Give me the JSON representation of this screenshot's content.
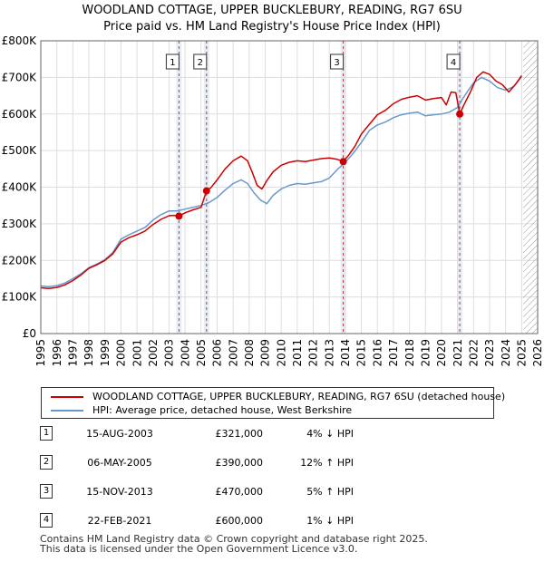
{
  "colors": {
    "price_line": "#cc0000",
    "hpi_line": "#6699cc",
    "grid": "#dddddd",
    "band": "#dde6f2",
    "vline": "#cc0000"
  },
  "chart_data": {
    "type": "line",
    "title": "WOODLAND COTTAGE, UPPER BUCKLEBURY, READING, RG7 6SU",
    "subtitle": "Price paid vs. HM Land Registry's House Price Index (HPI)",
    "xlim": [
      1995,
      2026
    ],
    "ylim": [
      0,
      800000
    ],
    "x_ticks": [
      "1995",
      "1996",
      "1997",
      "1998",
      "1999",
      "2000",
      "2001",
      "2002",
      "2003",
      "2004",
      "2005",
      "2006",
      "2007",
      "2008",
      "2009",
      "2010",
      "2011",
      "2012",
      "2013",
      "2014",
      "2015",
      "2016",
      "2017",
      "2018",
      "2019",
      "2020",
      "2021",
      "2022",
      "2023",
      "2024",
      "2025",
      "2026"
    ],
    "y_ticks": [
      {
        "value": 0,
        "label": "£0"
      },
      {
        "value": 100000,
        "label": "£100K"
      },
      {
        "value": 200000,
        "label": "£200K"
      },
      {
        "value": 300000,
        "label": "£300K"
      },
      {
        "value": 400000,
        "label": "£400K"
      },
      {
        "value": 500000,
        "label": "£500K"
      },
      {
        "value": 600000,
        "label": "£600K"
      },
      {
        "value": 700000,
        "label": "£700K"
      },
      {
        "value": 800000,
        "label": "£800K"
      }
    ],
    "hatched_future_from": 2025.1,
    "series": [
      {
        "name": "WOODLAND COTTAGE, UPPER BUCKLEBURY, READING, RG7 6SU (detached house)",
        "x": [
          1995,
          1995.5,
          1996,
          1996.5,
          1997,
          1997.5,
          1998,
          1998.5,
          1999,
          1999.5,
          2000,
          2000.5,
          2001,
          2001.5,
          2002,
          2002.5,
          2003,
          2003.3,
          2003.62,
          2004,
          2004.5,
          2005,
          2005.34,
          2005.6,
          2006,
          2006.5,
          2007,
          2007.5,
          2007.9,
          2008.2,
          2008.5,
          2008.8,
          2009.1,
          2009.5,
          2010,
          2010.5,
          2011,
          2011.5,
          2012,
          2012.5,
          2013,
          2013.5,
          2013.87,
          2014.2,
          2014.6,
          2015,
          2015.5,
          2016,
          2016.5,
          2017,
          2017.5,
          2018,
          2018.5,
          2019,
          2019.5,
          2020,
          2020.3,
          2020.6,
          2020.9,
          2021.14,
          2021.4,
          2021.8,
          2022.2,
          2022.6,
          2023,
          2023.4,
          2023.8,
          2024.2,
          2024.6,
          2025
        ],
        "y": [
          125000,
          123000,
          126000,
          133000,
          145000,
          160000,
          178000,
          188000,
          200000,
          218000,
          250000,
          262000,
          270000,
          280000,
          298000,
          312000,
          322000,
          323000,
          321000,
          330000,
          338000,
          345000,
          390000,
          398000,
          420000,
          450000,
          472000,
          485000,
          472000,
          440000,
          405000,
          395000,
          418000,
          442000,
          460000,
          468000,
          472000,
          470000,
          474000,
          478000,
          480000,
          476000,
          470000,
          487000,
          512000,
          545000,
          572000,
          598000,
          610000,
          628000,
          640000,
          646000,
          650000,
          638000,
          642000,
          645000,
          625000,
          660000,
          658000,
          600000,
          625000,
          660000,
          700000,
          715000,
          708000,
          690000,
          680000,
          660000,
          680000,
          705000
        ]
      },
      {
        "name": "HPI: Average price, detached house, West Berkshire",
        "x": [
          1995,
          1995.5,
          1996,
          1996.5,
          1997,
          1997.5,
          1998,
          1998.5,
          1999,
          1999.5,
          2000,
          2000.5,
          2001,
          2001.5,
          2002,
          2002.5,
          2003,
          2003.5,
          2004,
          2004.5,
          2005,
          2005.5,
          2006,
          2006.5,
          2007,
          2007.5,
          2007.9,
          2008.3,
          2008.7,
          2009.1,
          2009.5,
          2010,
          2010.5,
          2011,
          2011.5,
          2012,
          2012.5,
          2013,
          2013.5,
          2014,
          2014.5,
          2015,
          2015.5,
          2016,
          2016.5,
          2017,
          2017.5,
          2018,
          2018.5,
          2019,
          2019.5,
          2020,
          2020.5,
          2021,
          2021.3,
          2021.6,
          2022,
          2022.5,
          2023,
          2023.5,
          2024,
          2024.5,
          2025
        ],
        "y": [
          130000,
          128000,
          131000,
          138000,
          150000,
          163000,
          180000,
          190000,
          202000,
          222000,
          258000,
          270000,
          280000,
          290000,
          310000,
          325000,
          335000,
          335000,
          340000,
          345000,
          350000,
          358000,
          372000,
          392000,
          410000,
          420000,
          410000,
          385000,
          365000,
          355000,
          378000,
          395000,
          405000,
          410000,
          408000,
          412000,
          415000,
          425000,
          448000,
          468000,
          493000,
          522000,
          555000,
          570000,
          578000,
          590000,
          598000,
          602000,
          605000,
          595000,
          598000,
          600000,
          605000,
          618000,
          640000,
          660000,
          685000,
          700000,
          690000,
          672000,
          665000,
          675000,
          702000
        ]
      }
    ],
    "sales": [
      {
        "label": "1",
        "x": 2003.62,
        "price": 321000
      },
      {
        "label": "2",
        "x": 2005.34,
        "price": 390000
      },
      {
        "label": "3",
        "x": 2013.87,
        "price": 470000
      },
      {
        "label": "4",
        "x": 2021.14,
        "price": 600000
      }
    ]
  },
  "legend": {
    "property": "WOODLAND COTTAGE, UPPER BUCKLEBURY, READING, RG7 6SU (detached house)",
    "hpi": "HPI: Average price, detached house, West Berkshire"
  },
  "transactions": [
    {
      "num": "1",
      "date": "15-AUG-2003",
      "price": "£321,000",
      "hpi": "4% ↓ HPI"
    },
    {
      "num": "2",
      "date": "06-MAY-2005",
      "price": "£390,000",
      "hpi": "12% ↑ HPI"
    },
    {
      "num": "3",
      "date": "15-NOV-2013",
      "price": "£470,000",
      "hpi": "5% ↑ HPI"
    },
    {
      "num": "4",
      "date": "22-FEB-2021",
      "price": "£600,000",
      "hpi": "1% ↓ HPI"
    }
  ],
  "footer": {
    "line1": "Contains HM Land Registry data © Crown copyright and database right 2025.",
    "line2": "This data is licensed under the Open Government Licence v3.0."
  }
}
